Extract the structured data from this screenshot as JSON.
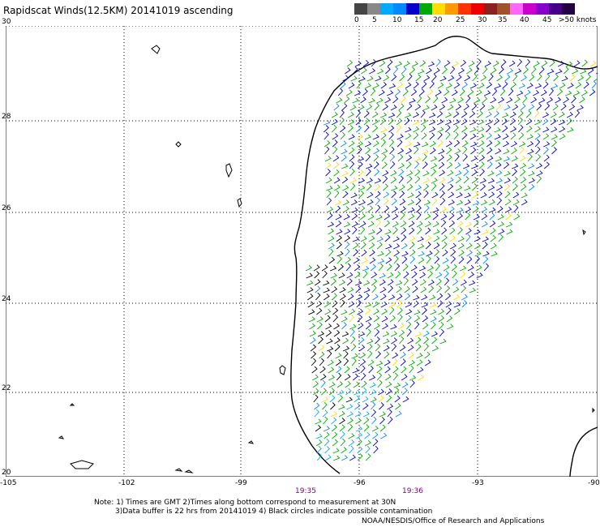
{
  "title": "Rapidscat Winds(12.5KM) 20141019 ascending",
  "legend": {
    "colors": [
      "#444444",
      "#888888",
      "#00aaff",
      "#0088ff",
      "#0000cc",
      "#00aa00",
      "#ffdd00",
      "#ff9900",
      "#ff3300",
      "#ee0000",
      "#8b2222",
      "#a0522d",
      "#ff66ff",
      "#cc00cc",
      "#8800cc",
      "#440088",
      "#220044"
    ],
    "labels": [
      "0",
      "5",
      "10",
      "15",
      "20",
      "25",
      "30",
      "35",
      "40",
      "45",
      ">50 knots"
    ]
  },
  "axes": {
    "lon_labels": [
      "-105",
      "-102",
      "-99",
      "-96",
      "-93",
      "-90"
    ],
    "lat_labels": [
      "30",
      "28",
      "26",
      "24",
      "22",
      "20"
    ]
  },
  "times": [
    "19:35",
    "19:36"
  ],
  "notes": [
    "Note: 1) Times are GMT 2)Times along bottom correspond to measurement at 30N",
    "3)Data buffer is 22 hrs from 20141019 4) Black circles indicate possible contamination"
  ],
  "credit": "NOAA/NESDIS/Office of Research and Applications"
}
